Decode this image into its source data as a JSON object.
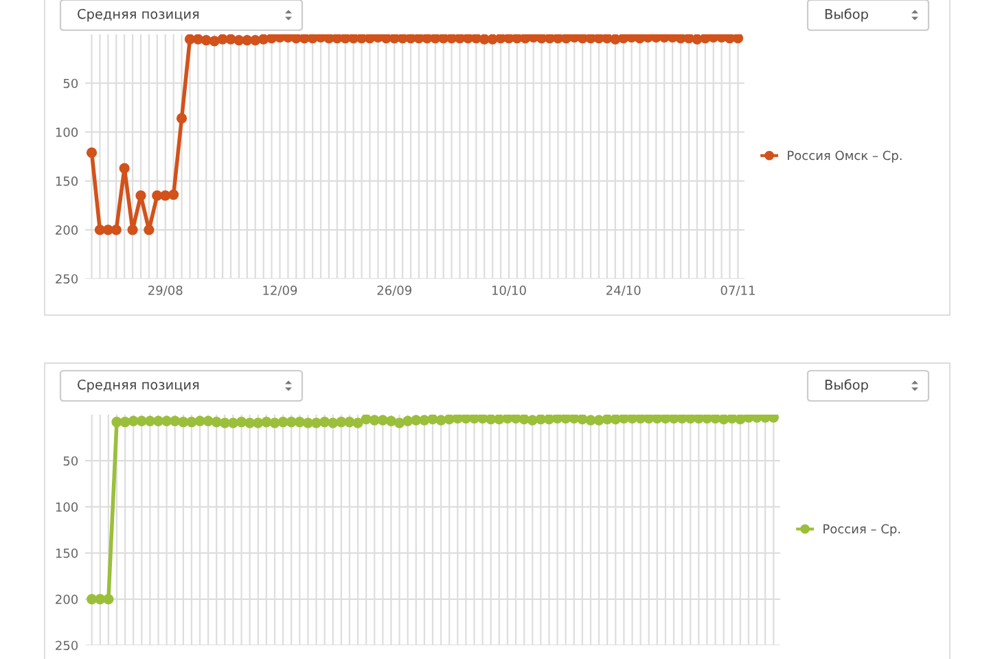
{
  "chart_data": [
    {
      "type": "line",
      "annotations": [
        "Средняя позиция",
        "Выбор"
      ],
      "categories": [
        null,
        null,
        null,
        null,
        null,
        null,
        null,
        null,
        null,
        "29/08",
        null,
        null,
        null,
        null,
        null,
        null,
        null,
        null,
        null,
        null,
        null,
        null,
        null,
        "12/09",
        null,
        null,
        null,
        null,
        null,
        null,
        null,
        null,
        null,
        null,
        null,
        null,
        null,
        "26/09",
        null,
        null,
        null,
        null,
        null,
        null,
        null,
        null,
        null,
        null,
        null,
        null,
        null,
        "10/10",
        null,
        null,
        null,
        null,
        null,
        null,
        null,
        null,
        null,
        null,
        null,
        null,
        null,
        "24/10",
        null,
        null,
        null,
        null,
        null,
        null,
        null,
        null,
        null,
        null,
        null,
        null,
        null,
        "07/11"
      ],
      "series": [
        {
          "name": "Россия Омск – Ср.",
          "color": "#d2521b",
          "values": [
            121,
            200,
            200,
            200,
            137,
            200,
            165,
            200,
            165,
            165,
            164,
            86,
            5,
            5,
            6,
            7,
            5,
            5,
            6,
            6,
            6,
            5,
            4,
            3,
            3,
            4,
            4,
            4,
            3,
            4,
            4,
            4,
            4,
            4,
            4,
            3,
            4,
            4,
            4,
            4,
            4,
            4,
            4,
            4,
            4,
            4,
            4,
            4,
            5,
            5,
            4,
            4,
            4,
            4,
            3,
            4,
            4,
            4,
            4,
            3,
            4,
            4,
            4,
            4,
            5,
            4,
            3,
            4,
            3,
            3,
            3,
            3,
            4,
            4,
            5,
            4,
            3,
            3,
            4,
            4
          ]
        }
      ],
      "ylim": [
        250,
        0
      ],
      "yticks": [
        50,
        100,
        150,
        200,
        250
      ],
      "grid": true,
      "legend": "right",
      "marker": "circle",
      "line_style": "solid"
    },
    {
      "type": "line",
      "annotations": [
        "Средняя позиция",
        "Выбор"
      ],
      "categories": [
        null,
        null,
        null,
        null,
        null,
        null,
        null,
        null,
        null,
        null,
        null,
        null,
        null,
        null,
        null,
        null,
        null,
        null,
        null,
        null,
        null,
        null,
        null,
        null,
        null,
        null,
        null,
        null,
        null,
        null,
        null,
        null,
        null,
        null,
        null,
        null,
        null,
        null,
        null,
        null,
        null,
        null,
        null,
        null,
        null,
        null,
        null,
        null,
        null,
        null,
        null,
        null,
        null,
        null,
        null,
        null,
        null,
        null,
        null,
        null,
        null,
        null,
        null,
        null,
        null,
        null,
        null,
        null,
        null,
        null,
        null,
        null,
        null,
        null,
        null,
        null,
        null,
        null,
        null,
        null,
        null,
        null,
        null
      ],
      "series": [
        {
          "name": "Россия – Ср.",
          "color": "#9bbf3b",
          "values": [
            200,
            200,
            200,
            8,
            8,
            7,
            7,
            7,
            7,
            7,
            7,
            8,
            8,
            7,
            7,
            8,
            9,
            9,
            8,
            9,
            9,
            8,
            9,
            8,
            8,
            8,
            9,
            9,
            8,
            9,
            8,
            8,
            9,
            5,
            6,
            6,
            7,
            9,
            7,
            6,
            6,
            5,
            6,
            5,
            4,
            4,
            4,
            4,
            5,
            5,
            4,
            4,
            5,
            6,
            5,
            5,
            4,
            4,
            4,
            5,
            6,
            6,
            5,
            5,
            4,
            4,
            4,
            4,
            4,
            4,
            4,
            4,
            4,
            4,
            4,
            4,
            5,
            4,
            5,
            3,
            3,
            3,
            3
          ]
        }
      ],
      "ylim": [
        250,
        0
      ],
      "yticks": [
        50,
        100,
        150,
        200,
        250
      ],
      "grid": true,
      "legend": "right",
      "marker": "circle",
      "line_style": "solid"
    }
  ]
}
